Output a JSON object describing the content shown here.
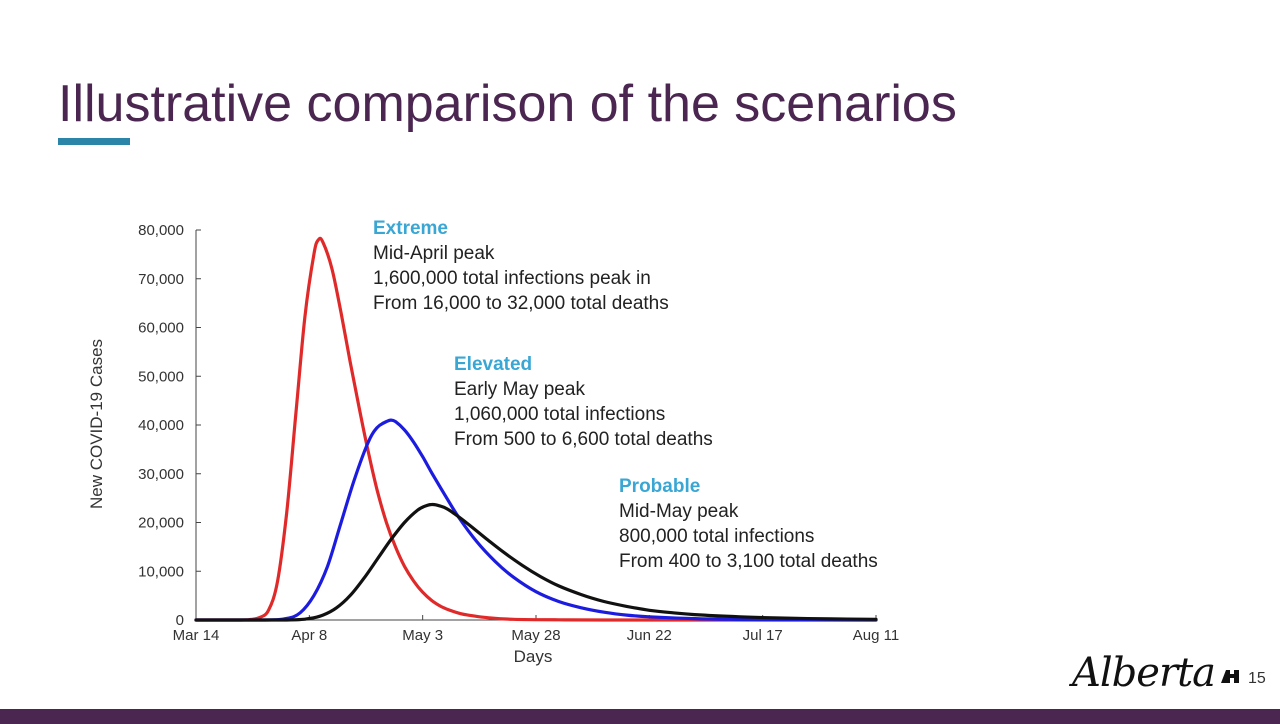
{
  "slide": {
    "title": "Illustrative comparison of the scenarios",
    "page_number": "15",
    "logo_text": "Alberta",
    "colors": {
      "title": "#4a2650",
      "underline": "#2b85a8",
      "annotation_heading": "#3aa6d4",
      "footer": "#4a2650"
    }
  },
  "annotations": [
    {
      "id": "extreme",
      "title": "Extreme",
      "lines": [
        "Mid-April peak",
        "1,600,000 total infections peak in",
        "From 16,000 to 32,000 total deaths"
      ]
    },
    {
      "id": "elevated",
      "title": "Elevated",
      "lines": [
        "Early May peak",
        "1,060,000 total infections",
        "From 500 to 6,600 total deaths"
      ]
    },
    {
      "id": "probable",
      "title": "Probable",
      "lines": [
        "Mid-May peak",
        "800,000 total infections",
        "From 400 to 3,100 total deaths"
      ]
    }
  ],
  "chart_data": {
    "type": "line",
    "title": "",
    "xlabel": "Days",
    "ylabel": "New COVID-19 Cases",
    "xlim": [
      0,
      150
    ],
    "ylim": [
      0,
      80000
    ],
    "x_ticks": [
      {
        "label": "Mar 14",
        "day": 0
      },
      {
        "label": "Apr 8",
        "day": 25
      },
      {
        "label": "May 3",
        "day": 50
      },
      {
        "label": "May 28",
        "day": 75
      },
      {
        "label": "Jun 22",
        "day": 100
      },
      {
        "label": "Jul 17",
        "day": 125
      },
      {
        "label": "Aug 11",
        "day": 150
      }
    ],
    "y_ticks": [
      {
        "label": "0",
        "value": 0
      },
      {
        "label": "10,000",
        "value": 10000
      },
      {
        "label": "20,000",
        "value": 20000
      },
      {
        "label": "30,000",
        "value": 30000
      },
      {
        "label": "40,000",
        "value": 40000
      },
      {
        "label": "50,000",
        "value": 50000
      },
      {
        "label": "60,000",
        "value": 60000
      },
      {
        "label": "70,000",
        "value": 70000
      },
      {
        "label": "80,000",
        "value": 80000
      }
    ],
    "series": [
      {
        "name": "Extreme",
        "color": "#e02a2a",
        "x": [
          0,
          10,
          12,
          14,
          16,
          18,
          20,
          22,
          24,
          26,
          27,
          28,
          30,
          32,
          34,
          36,
          38,
          40,
          42,
          44,
          46,
          48,
          50,
          52,
          54,
          56,
          58,
          60,
          65,
          70,
          80,
          90,
          150
        ],
        "y": [
          0,
          0,
          100,
          500,
          2000,
          8000,
          22000,
          42000,
          62000,
          75000,
          78000,
          77500,
          72000,
          63000,
          53000,
          43500,
          34500,
          26500,
          20000,
          15000,
          11000,
          8000,
          5700,
          4000,
          2800,
          2000,
          1400,
          1000,
          400,
          150,
          40,
          10,
          0
        ]
      },
      {
        "name": "Elevated",
        "color": "#1c1ce0",
        "x": [
          0,
          15,
          20,
          23,
          26,
          29,
          32,
          35,
          38,
          40,
          42,
          43,
          44,
          46,
          48,
          50,
          52,
          55,
          58,
          62,
          66,
          70,
          75,
          80,
          85,
          90,
          95,
          100,
          110,
          120,
          130,
          150
        ],
        "y": [
          0,
          0,
          300,
          1500,
          5000,
          11000,
          20000,
          29000,
          36500,
          39500,
          40700,
          41000,
          40700,
          39000,
          36500,
          33500,
          30200,
          25500,
          21000,
          16000,
          12000,
          8800,
          5800,
          3800,
          2500,
          1600,
          1000,
          650,
          280,
          120,
          50,
          0
        ]
      },
      {
        "name": "Probable",
        "color": "#111111",
        "x": [
          0,
          20,
          25,
          28,
          31,
          34,
          37,
          40,
          43,
          46,
          49,
          51,
          52,
          53,
          55,
          57,
          60,
          64,
          68,
          72,
          76,
          80,
          85,
          90,
          95,
          100,
          105,
          110,
          120,
          130,
          140,
          150
        ],
        "y": [
          0,
          0,
          300,
          1000,
          2500,
          5000,
          8500,
          12500,
          16500,
          20000,
          22600,
          23500,
          23700,
          23600,
          23000,
          21800,
          19700,
          16700,
          13800,
          11200,
          8900,
          7000,
          5200,
          3800,
          2800,
          2000,
          1500,
          1100,
          650,
          380,
          230,
          140
        ]
      }
    ]
  }
}
